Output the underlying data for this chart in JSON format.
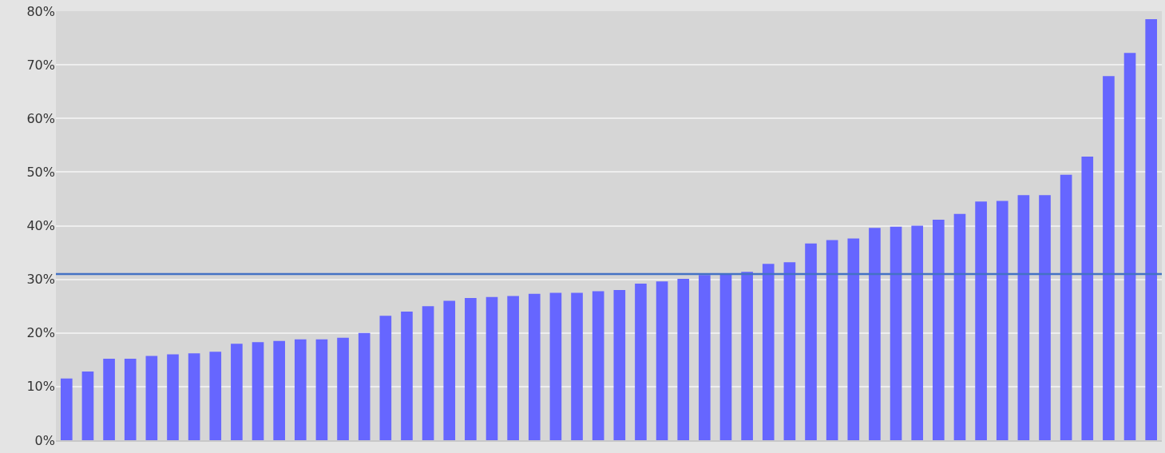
{
  "chart_data": {
    "type": "bar",
    "categories": [
      null,
      null,
      null,
      null,
      null,
      null,
      null,
      null,
      null,
      null,
      null,
      null,
      null,
      null,
      null,
      null,
      null,
      null,
      null,
      null,
      null,
      null,
      null,
      null,
      null,
      null,
      null,
      null,
      null,
      null,
      null,
      null,
      null,
      null,
      null,
      null,
      null,
      null,
      null,
      null,
      null,
      null,
      null,
      null,
      null,
      null,
      null,
      null,
      null,
      null,
      null,
      null
    ],
    "values": [
      11.5,
      12.8,
      15.2,
      15.2,
      15.7,
      16.0,
      16.2,
      16.5,
      18.0,
      18.3,
      18.5,
      18.8,
      18.8,
      19.1,
      20.0,
      23.2,
      24.0,
      25.0,
      26.0,
      26.5,
      26.7,
      26.9,
      27.3,
      27.5,
      27.5,
      27.8,
      28.0,
      29.2,
      29.6,
      30.1,
      30.8,
      30.9,
      31.4,
      32.9,
      33.2,
      36.7,
      37.3,
      37.6,
      39.6,
      39.8,
      40.0,
      41.1,
      42.2,
      44.5,
      44.6,
      45.7,
      45.7,
      49.5,
      52.9,
      67.9,
      72.2,
      78.5
    ],
    "color": "#6666ff",
    "ylim": [
      0,
      80
    ],
    "yticks": [
      {
        "value": 0,
        "label": "0%"
      },
      {
        "value": 10,
        "label": "10%"
      },
      {
        "value": 20,
        "label": "20%"
      },
      {
        "value": 30,
        "label": "30%"
      },
      {
        "value": 40,
        "label": "40%"
      },
      {
        "value": 50,
        "label": "50%"
      },
      {
        "value": 60,
        "label": "60%"
      },
      {
        "value": 70,
        "label": "70%"
      },
      {
        "value": 80,
        "label": "80%"
      }
    ],
    "ref_lines": [
      {
        "axis": "y",
        "value": 31,
        "color": "#4472c4",
        "line_style": "solid"
      }
    ],
    "grid": "y",
    "tick_labels": "y"
  }
}
